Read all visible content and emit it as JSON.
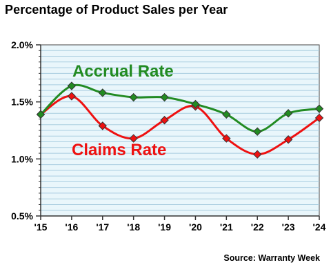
{
  "title": "Percentage of Product Sales per Year",
  "source": "Source: Warranty Week",
  "colors": {
    "plot_background": "#e9f6fb",
    "gridline": "#a9cde0",
    "accrual": "#228b22",
    "claims": "#ee1111",
    "marker_edge": "#333333"
  },
  "chart_data": {
    "type": "line",
    "title": "Percentage of Product Sales per Year",
    "x": [
      "'15",
      "'16",
      "'17",
      "'18",
      "'19",
      "'20",
      "'21",
      "'22",
      "'23",
      "'24"
    ],
    "ylim": [
      0.5,
      2.0
    ],
    "yticks": [
      "0.5%",
      "1.0%",
      "1.5%",
      "2.0%"
    ],
    "ytick_values": [
      0.5,
      1.0,
      1.5,
      2.0
    ],
    "grid": true,
    "series": [
      {
        "name": "Accrual Rate",
        "color": "#228b22",
        "values": [
          1.39,
          1.64,
          1.58,
          1.54,
          1.54,
          1.48,
          1.39,
          1.24,
          1.4,
          1.44
        ]
      },
      {
        "name": "Claims Rate",
        "color": "#ee1111",
        "values": [
          1.39,
          1.55,
          1.29,
          1.18,
          1.34,
          1.46,
          1.18,
          1.04,
          1.17,
          1.36
        ]
      }
    ]
  }
}
